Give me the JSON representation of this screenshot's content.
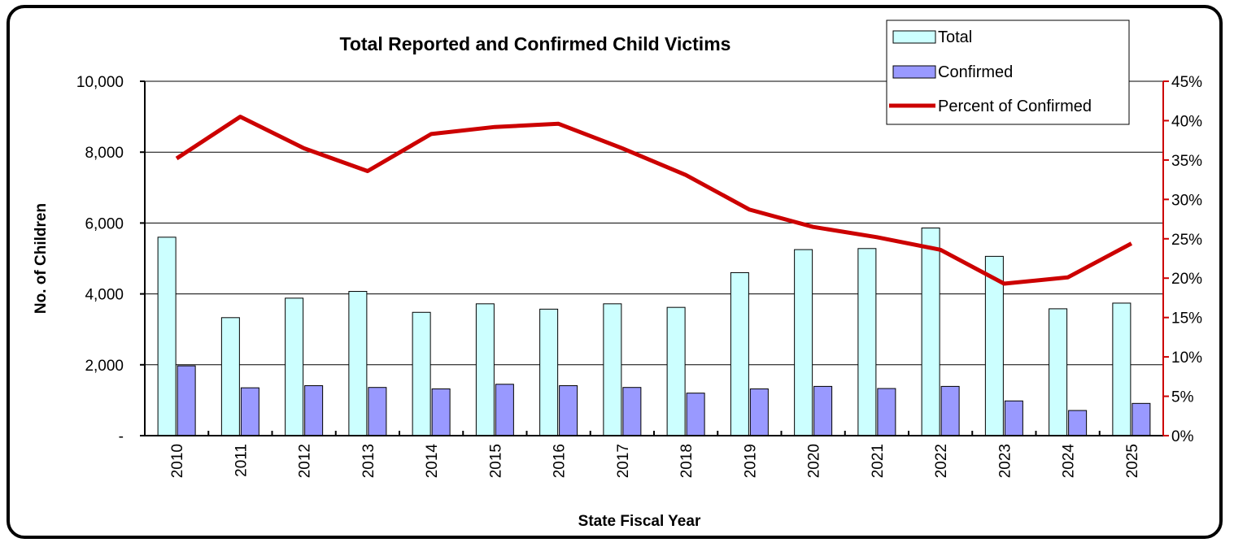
{
  "chart_data": {
    "type": "bar",
    "title": "Total Reported and Confirmed Child Victims",
    "xlabel": "State Fiscal Year",
    "ylabel": "No. of Children",
    "categories": [
      "2010",
      "2011",
      "2012",
      "2013",
      "2014",
      "2015",
      "2016",
      "2017",
      "2018",
      "2019",
      "2020",
      "2021",
      "2022",
      "2023",
      "2024",
      "2025"
    ],
    "series": [
      {
        "name": "Total",
        "type": "bar",
        "axis": "left",
        "color": "#ccffff",
        "values": [
          5600,
          3330,
          3880,
          4070,
          3480,
          3720,
          3570,
          3720,
          3620,
          4600,
          5250,
          5280,
          5860,
          5060,
          3580,
          3740
        ]
      },
      {
        "name": "Confirmed",
        "type": "bar",
        "axis": "left",
        "color": "#9999ff",
        "values": [
          1970,
          1350,
          1410,
          1360,
          1320,
          1450,
          1410,
          1360,
          1200,
          1320,
          1390,
          1330,
          1390,
          980,
          710,
          910
        ]
      },
      {
        "name": "Percent of Confirmed",
        "type": "line",
        "axis": "right",
        "color": "#cc0000",
        "values": [
          35.2,
          40.5,
          36.5,
          33.6,
          38.3,
          39.2,
          39.6,
          36.5,
          33.1,
          28.7,
          26.5,
          25.2,
          23.6,
          19.3,
          20.1,
          24.4
        ]
      }
    ],
    "ylim": [
      0,
      10000
    ],
    "y_ticks": [
      0,
      2000,
      4000,
      6000,
      8000,
      10000
    ],
    "y_tick_labels": [
      "-",
      "2,000",
      "4,000",
      "6,000",
      "8,000",
      "10,000"
    ],
    "y2lim": [
      0,
      45
    ],
    "y2_ticks": [
      0,
      5,
      10,
      15,
      20,
      25,
      30,
      35,
      40,
      45
    ],
    "y2_tick_labels": [
      "0%",
      "5%",
      "10%",
      "15%",
      "20%",
      "25%",
      "30%",
      "35%",
      "40%",
      "45%"
    ],
    "grid": true,
    "legend_position": "top-right",
    "colors": {
      "axis_right": "#cc0000",
      "gridline": "#000000",
      "bar_outline": "#000000"
    }
  }
}
